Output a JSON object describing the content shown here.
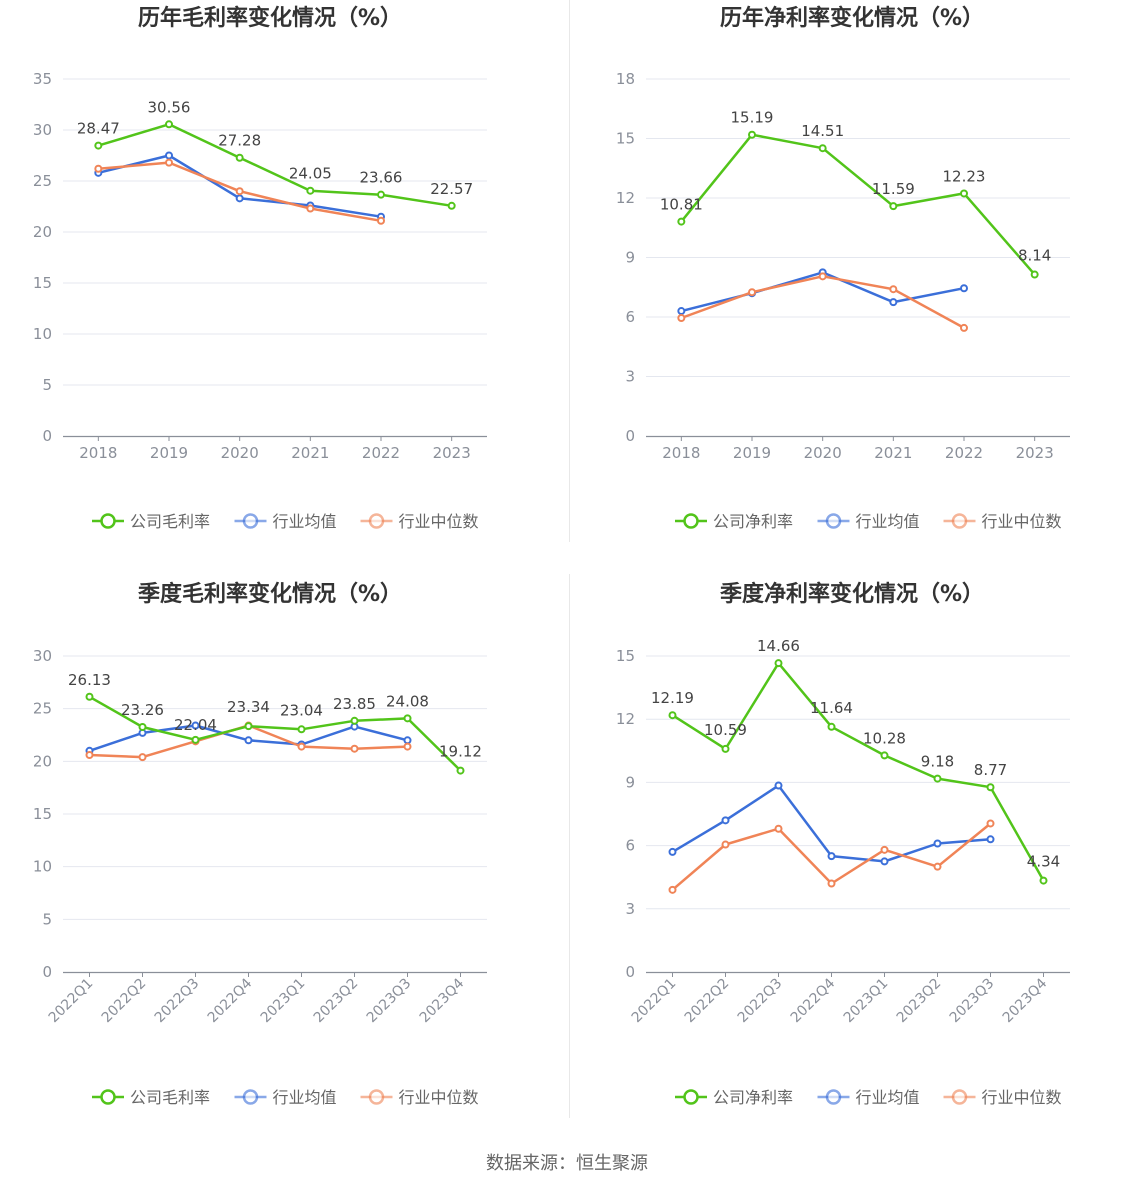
{
  "colors": {
    "company": "#52c41a",
    "industry_avg": "#3b6fd9",
    "industry_median": "#f08457",
    "grid": "#e4e7ef",
    "axis": "#8a8f99",
    "text": "#666666",
    "title": "#333333",
    "divider": "#e8e8e8"
  },
  "legend_icon": "circle-line-icon",
  "source": "数据来源：恒生聚源",
  "chart_data": [
    {
      "type": "line",
      "title": "历年毛利率变化情况（%）",
      "categories": [
        "2018",
        "2019",
        "2020",
        "2021",
        "2022",
        "2023"
      ],
      "ylim": [
        0,
        35
      ],
      "yticks": [
        0,
        5,
        10,
        15,
        20,
        25,
        30,
        35
      ],
      "grid": true,
      "legend_position": "bottom",
      "series": [
        {
          "name": "公司毛利率",
          "key": "company",
          "values": [
            28.47,
            30.56,
            27.28,
            24.05,
            23.66,
            22.57
          ],
          "labels": true
        },
        {
          "name": "行业均值",
          "key": "industry_avg",
          "values": [
            25.8,
            27.5,
            23.3,
            22.6,
            21.5,
            null
          ],
          "labels": false
        },
        {
          "name": "行业中位数",
          "key": "industry_median",
          "values": [
            26.2,
            26.8,
            24.0,
            22.3,
            21.1,
            null
          ],
          "labels": false
        }
      ]
    },
    {
      "type": "line",
      "title": "历年净利率变化情况（%）",
      "categories": [
        "2018",
        "2019",
        "2020",
        "2021",
        "2022",
        "2023"
      ],
      "ylim": [
        0,
        18
      ],
      "yticks": [
        0,
        3,
        6,
        9,
        12,
        15,
        18
      ],
      "grid": true,
      "legend_position": "bottom",
      "series": [
        {
          "name": "公司净利率",
          "key": "company",
          "values": [
            10.81,
            15.19,
            14.51,
            11.59,
            12.23,
            8.14
          ],
          "labels": true
        },
        {
          "name": "行业均值",
          "key": "industry_avg",
          "values": [
            6.3,
            7.2,
            8.25,
            6.75,
            7.45,
            null
          ],
          "labels": false
        },
        {
          "name": "行业中位数",
          "key": "industry_median",
          "values": [
            5.95,
            7.25,
            8.05,
            7.4,
            5.45,
            null
          ],
          "labels": false
        }
      ]
    },
    {
      "type": "line",
      "title": "季度毛利率变化情况（%）",
      "categories": [
        "2022Q1",
        "2022Q2",
        "2022Q3",
        "2022Q4",
        "2023Q1",
        "2023Q2",
        "2023Q3",
        "2023Q4"
      ],
      "ylim": [
        0,
        30
      ],
      "yticks": [
        0,
        5,
        10,
        15,
        20,
        25,
        30
      ],
      "grid": true,
      "rotate_x_labels": true,
      "legend_position": "bottom",
      "series": [
        {
          "name": "公司毛利率",
          "key": "company",
          "values": [
            26.13,
            23.26,
            22.04,
            23.34,
            23.04,
            23.85,
            24.08,
            19.12
          ],
          "labels": true
        },
        {
          "name": "行业均值",
          "key": "industry_avg",
          "values": [
            21.0,
            22.7,
            23.4,
            22.0,
            21.6,
            23.3,
            22.0,
            null
          ],
          "labels": false
        },
        {
          "name": "行业中位数",
          "key": "industry_median",
          "values": [
            20.6,
            20.4,
            21.9,
            23.4,
            21.4,
            21.2,
            21.4,
            null
          ],
          "labels": false
        }
      ]
    },
    {
      "type": "line",
      "title": "季度净利率变化情况（%）",
      "categories": [
        "2022Q1",
        "2022Q2",
        "2022Q3",
        "2022Q4",
        "2023Q1",
        "2023Q2",
        "2023Q3",
        "2023Q4"
      ],
      "ylim": [
        0,
        15
      ],
      "yticks": [
        0,
        3,
        6,
        9,
        12,
        15
      ],
      "grid": true,
      "rotate_x_labels": true,
      "legend_position": "bottom",
      "series": [
        {
          "name": "公司净利率",
          "key": "company",
          "values": [
            12.19,
            10.59,
            14.66,
            11.64,
            10.28,
            9.18,
            8.77,
            4.34
          ],
          "labels": true
        },
        {
          "name": "行业均值",
          "key": "industry_avg",
          "values": [
            5.7,
            7.2,
            8.85,
            5.5,
            5.25,
            6.1,
            6.3,
            null
          ],
          "labels": false
        },
        {
          "name": "行业中位数",
          "key": "industry_median",
          "values": [
            3.9,
            6.05,
            6.8,
            4.2,
            5.8,
            5.0,
            7.05,
            null
          ],
          "labels": false
        }
      ]
    }
  ]
}
